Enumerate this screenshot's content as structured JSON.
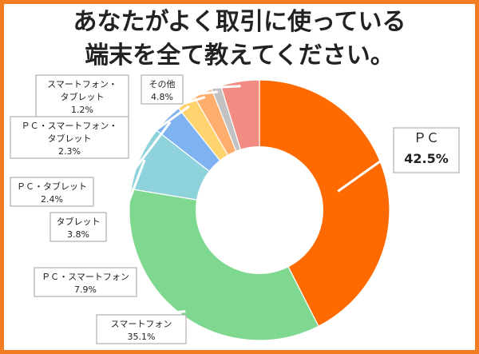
{
  "chart_data": {
    "type": "pie",
    "title_lines": [
      "あなたがよく取引に使っている",
      "端末を全て教えてください。"
    ],
    "slices": [
      {
        "name": "ＰＣ",
        "value": 42.5,
        "label": "42.5%",
        "color": "#ff6a00"
      },
      {
        "name": "スマートフォン",
        "value": 35.1,
        "label": "35.1%",
        "color": "#7fd88f"
      },
      {
        "name": "ＰＣ・スマートフォン",
        "value": 7.9,
        "label": "7.9%",
        "color": "#8ed3dc"
      },
      {
        "name": "タブレット",
        "value": 3.8,
        "label": "3.8%",
        "color": "#7fb2f0"
      },
      {
        "name": "ＰＣ・タブレット",
        "value": 2.4,
        "label": "2.4%",
        "color": "#ffd36e"
      },
      {
        "name": "ＰＣ・スマートフォン・タブレット",
        "value": 2.3,
        "label": "2.3%",
        "color": "#ffae6e"
      },
      {
        "name": "スマートフォン・タブレット",
        "value": 1.2,
        "label": "1.2%",
        "color": "#c2c2c2"
      },
      {
        "name": "その他",
        "value": 4.8,
        "label": "4.8%",
        "color": "#f28b82"
      }
    ]
  }
}
